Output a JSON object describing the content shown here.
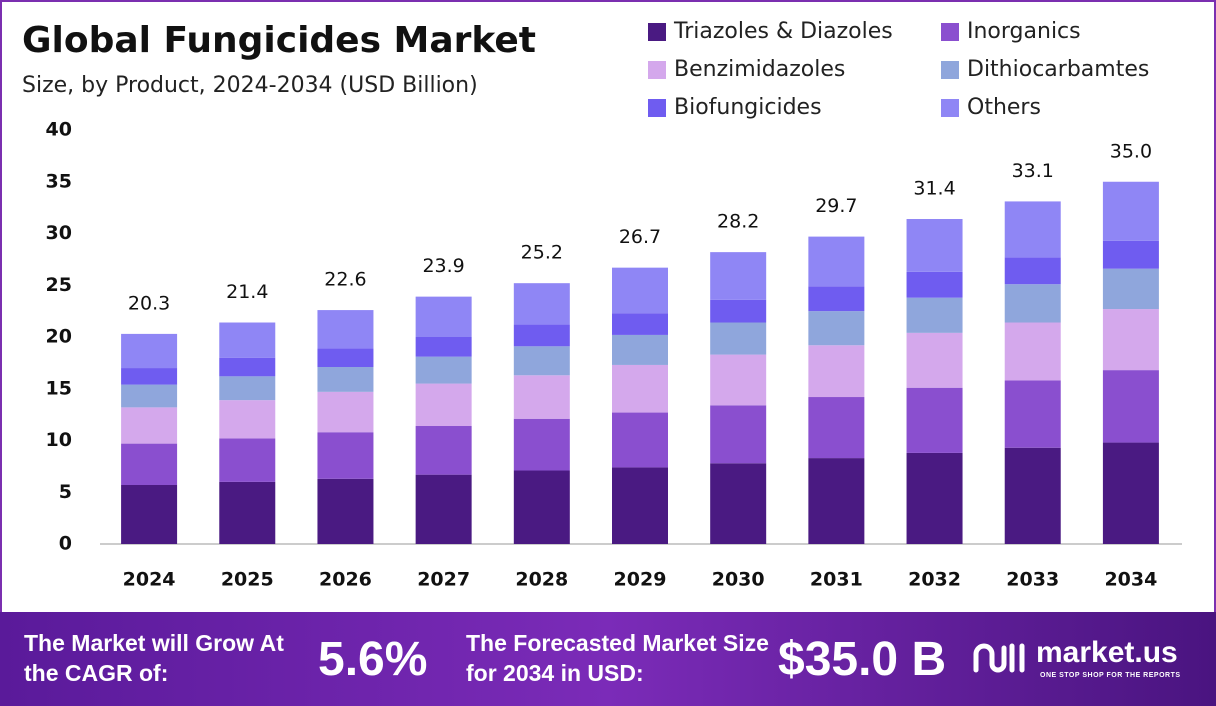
{
  "chart_data": {
    "type": "stacked-bar",
    "title": "Global Fungicides Market",
    "subtitle": "Size, by  Product, 2024-2034 (USD Billion)",
    "categories": [
      "2024",
      "2025",
      "2026",
      "2027",
      "2028",
      "2029",
      "2030",
      "2031",
      "2032",
      "2033",
      "2034"
    ],
    "series": [
      {
        "name": "Triazoles & Diazoles",
        "color": "#4a1a82",
        "values": [
          5.7,
          6.0,
          6.3,
          6.7,
          7.1,
          7.4,
          7.8,
          8.3,
          8.8,
          9.3,
          9.8
        ]
      },
      {
        "name": "Inorganics",
        "color": "#8a4fcf",
        "values": [
          4.0,
          4.2,
          4.5,
          4.7,
          5.0,
          5.3,
          5.6,
          5.9,
          6.3,
          6.5,
          7.0
        ]
      },
      {
        "name": "Benzimidazoles",
        "color": "#d4a8ec",
        "values": [
          3.5,
          3.7,
          3.9,
          4.1,
          4.2,
          4.6,
          4.9,
          5.0,
          5.3,
          5.6,
          5.9
        ]
      },
      {
        "name": "Dithiocarbamtes",
        "color": "#8fa6dc",
        "values": [
          2.2,
          2.3,
          2.4,
          2.6,
          2.8,
          2.9,
          3.1,
          3.3,
          3.4,
          3.7,
          3.9
        ]
      },
      {
        "name": "Biofungicides",
        "color": "#6f5cf0",
        "values": [
          1.6,
          1.8,
          1.8,
          1.9,
          2.1,
          2.1,
          2.2,
          2.4,
          2.5,
          2.6,
          2.7
        ]
      },
      {
        "name": "Others",
        "color": "#8f86f5",
        "values": [
          3.3,
          3.4,
          3.7,
          3.9,
          4.0,
          4.4,
          4.6,
          4.8,
          5.1,
          5.4,
          5.7
        ]
      }
    ],
    "totals": [
      20.3,
      21.4,
      22.6,
      23.9,
      25.2,
      26.7,
      28.2,
      29.7,
      31.4,
      33.1,
      35.0
    ],
    "total_labels": [
      "20.3",
      "21.4",
      "22.6",
      "23.9",
      "25.2",
      "26.7",
      "28.2",
      "29.7",
      "31.4",
      "33.1",
      "35.0"
    ],
    "ylim": [
      0,
      40
    ],
    "yticks": [
      0,
      5,
      10,
      15,
      20,
      25,
      30,
      35,
      40
    ],
    "grid": false
  },
  "footer": {
    "cagr_text": "The Market will Grow At the CAGR of:",
    "cagr": "5.6%",
    "forecast_text": "The Forecasted Market Size for 2034 in USD:",
    "forecast": "$35.0 B",
    "brand": "market.us",
    "tagline": "ONE STOP SHOP FOR THE REPORTS"
  }
}
